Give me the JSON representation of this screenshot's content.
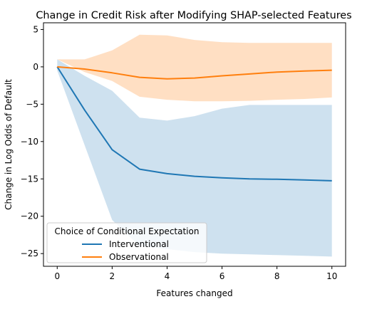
{
  "chart_data": {
    "type": "line",
    "title": "Change in Credit Risk after Modifying SHAP-selected Features",
    "xlabel": "Features changed",
    "ylabel": "Change in Log Odds of Default",
    "xlim": [
      -0.5,
      10.5
    ],
    "ylim": [
      -26.7,
      5.9
    ],
    "xticks": [
      0,
      2,
      4,
      6,
      8,
      10
    ],
    "yticks": [
      5,
      0,
      -5,
      -10,
      -15,
      -20,
      -25
    ],
    "grid": false,
    "legend": {
      "title": "Choice of Conditional Expectation",
      "placement": "lower-left"
    },
    "x": [
      0,
      1,
      2,
      3,
      4,
      5,
      6,
      7,
      8,
      9,
      10
    ],
    "series": [
      {
        "name": "Interventional",
        "color": "#1f77b4",
        "values": [
          0,
          -5.8,
          -11.1,
          -13.7,
          -14.3,
          -14.65,
          -14.85,
          -15.0,
          -15.05,
          -15.15,
          -15.25
        ],
        "band_upper": [
          1.0,
          -1.2,
          -3.2,
          -6.8,
          -7.2,
          -6.6,
          -5.6,
          -5.1,
          -5.1,
          -5.1,
          -5.1
        ],
        "band_lower": [
          -0.5,
          -10.5,
          -20.5,
          -24.0,
          -24.4,
          -24.8,
          -25.0,
          -25.1,
          -25.2,
          -25.3,
          -25.4
        ]
      },
      {
        "name": "Observational",
        "color": "#ff7f0e",
        "values": [
          0,
          -0.3,
          -0.8,
          -1.4,
          -1.6,
          -1.5,
          -1.2,
          -0.95,
          -0.7,
          -0.55,
          -0.45
        ],
        "band_upper": [
          1.0,
          1.0,
          2.2,
          4.3,
          4.2,
          3.6,
          3.3,
          3.2,
          3.2,
          3.2,
          3.2
        ],
        "band_lower": [
          1.0,
          -0.7,
          -1.9,
          -4.0,
          -4.4,
          -4.6,
          -4.6,
          -4.55,
          -4.4,
          -4.3,
          -4.1
        ]
      }
    ]
  }
}
